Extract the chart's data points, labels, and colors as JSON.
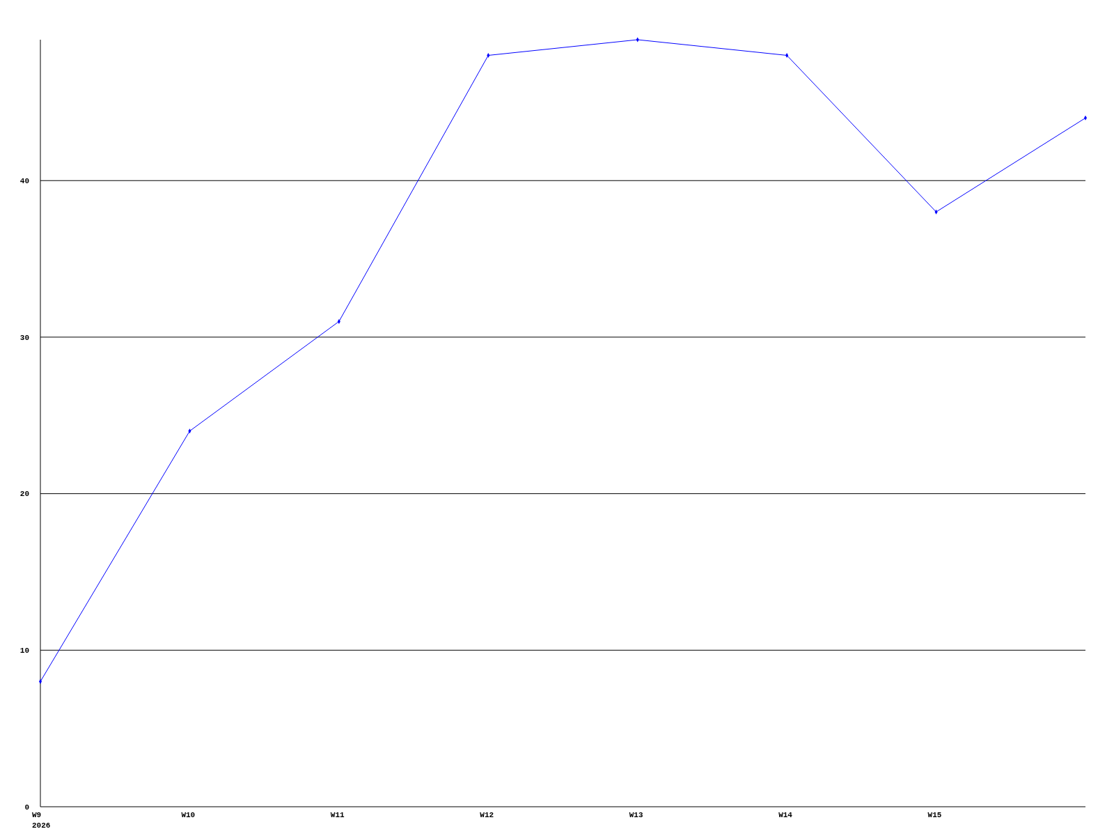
{
  "chart_data": {
    "type": "line",
    "categories": [
      "W9\n2026",
      "W10",
      "W11",
      "W12",
      "W13",
      "W14",
      "W15",
      null
    ],
    "series": [
      {
        "color": "#0000ff",
        "values": [
          8,
          24,
          31,
          48,
          49,
          48,
          38,
          44
        ]
      }
    ],
    "ylim": [
      0,
      49
    ],
    "yticks": [
      0,
      10,
      20,
      30,
      40
    ],
    "grid": "y",
    "marker": "diamond",
    "line_style": "solid"
  }
}
